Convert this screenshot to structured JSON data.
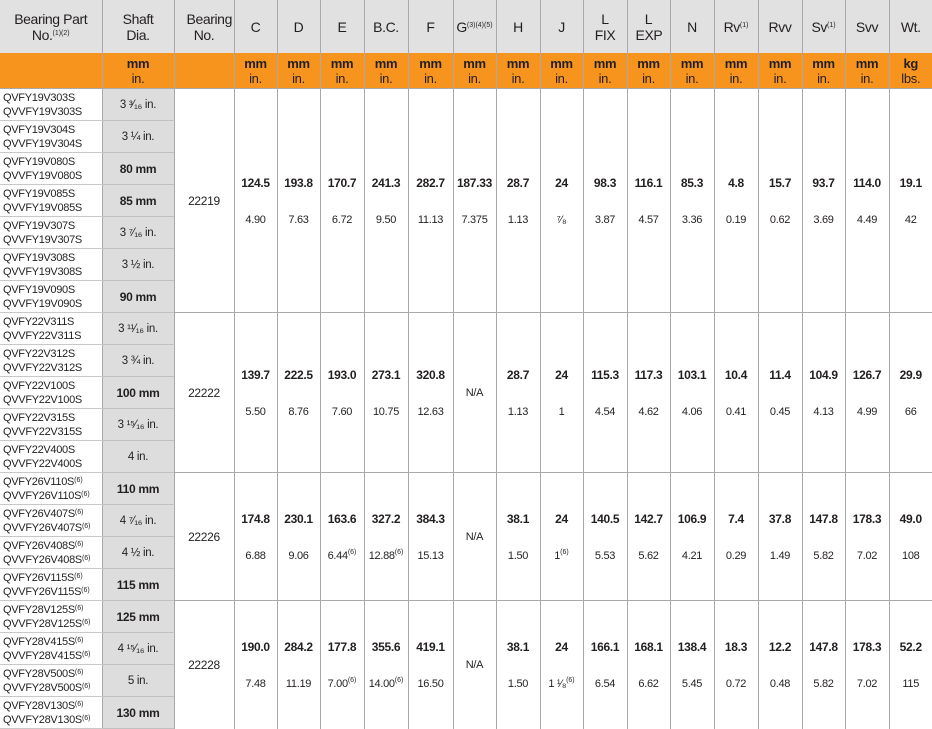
{
  "header": {
    "columns": [
      {
        "label": "Bearing Part No.",
        "sup": "(1)(2)"
      },
      {
        "label": "Shaft Dia."
      },
      {
        "label": "Bearing No."
      },
      {
        "label": "C"
      },
      {
        "label": "D"
      },
      {
        "label": "E"
      },
      {
        "label": "B.C."
      },
      {
        "label": "F"
      },
      {
        "label": "G",
        "sup": "(3)(4)(5)"
      },
      {
        "label": "H"
      },
      {
        "label": "J"
      },
      {
        "label": "L FIX"
      },
      {
        "label": "L EXP"
      },
      {
        "label": "N"
      },
      {
        "label": "Rv",
        "sup": "(1)"
      },
      {
        "label": "Rvv"
      },
      {
        "label": "Sv",
        "sup": "(1)"
      },
      {
        "label": "Svv"
      },
      {
        "label": "Wt."
      }
    ],
    "units": [
      {
        "top": "",
        "bottom": ""
      },
      {
        "top": "mm",
        "bottom": "in."
      },
      {
        "top": "",
        "bottom": ""
      },
      {
        "top": "mm",
        "bottom": "in."
      },
      {
        "top": "mm",
        "bottom": "in."
      },
      {
        "top": "mm",
        "bottom": "in."
      },
      {
        "top": "mm",
        "bottom": "in."
      },
      {
        "top": "mm",
        "bottom": "in."
      },
      {
        "top": "mm",
        "bottom": "in."
      },
      {
        "top": "mm",
        "bottom": "in."
      },
      {
        "top": "mm",
        "bottom": "in."
      },
      {
        "top": "mm",
        "bottom": "in."
      },
      {
        "top": "mm",
        "bottom": "in."
      },
      {
        "top": "mm",
        "bottom": "in."
      },
      {
        "top": "mm",
        "bottom": "in."
      },
      {
        "top": "mm",
        "bottom": "in."
      },
      {
        "top": "mm",
        "bottom": "in."
      },
      {
        "top": "mm",
        "bottom": "in."
      },
      {
        "top": "kg",
        "bottom": "lbs."
      }
    ]
  },
  "colors": {
    "header_bg": "#e1e1e1",
    "units_bg": "#f7941d",
    "shaft_bg": "#dddddd"
  },
  "groups": [
    {
      "bearing_no": "22219",
      "parts": [
        {
          "qvfy": "QVFY19V303S",
          "qvvfy": "QVVFY19V303S",
          "sup": "",
          "shaft": "3 ³⁄₁₆ in.",
          "bold": false
        },
        {
          "qvfy": "QVFY19V304S",
          "qvvfy": "QVVFY19V304S",
          "sup": "",
          "shaft": "3 ¼ in.",
          "bold": false
        },
        {
          "qvfy": "QVFY19V080S",
          "qvvfy": "QVVFY19V080S",
          "sup": "",
          "shaft": "80 mm",
          "bold": true
        },
        {
          "qvfy": "QVFY19V085S",
          "qvvfy": "QVVFY19V085S",
          "sup": "",
          "shaft": "85 mm",
          "bold": true
        },
        {
          "qvfy": "QVFY19V307S",
          "qvvfy": "QVVFY19V307S",
          "sup": "",
          "shaft": "3 ⁷⁄₁₆ in.",
          "bold": false
        },
        {
          "qvfy": "QVFY19V308S",
          "qvvfy": "QVVFY19V308S",
          "sup": "",
          "shaft": "3 ½ in.",
          "bold": false
        },
        {
          "qvfy": "QVFY19V090S",
          "qvvfy": "QVVFY19V090S",
          "sup": "",
          "shaft": "90 mm",
          "bold": true
        }
      ],
      "dims": [
        {
          "mm": "124.5",
          "in": "4.90"
        },
        {
          "mm": "193.8",
          "in": "7.63"
        },
        {
          "mm": "170.7",
          "in": "6.72"
        },
        {
          "mm": "241.3",
          "in": "9.50"
        },
        {
          "mm": "282.7",
          "in": "11.13"
        },
        {
          "mm": "187.33",
          "in": "7.375"
        },
        {
          "mm": "28.7",
          "in": "1.13"
        },
        {
          "mm": "24",
          "in": "⁷⁄₈"
        },
        {
          "mm": "98.3",
          "in": "3.87"
        },
        {
          "mm": "116.1",
          "in": "4.57"
        },
        {
          "mm": "85.3",
          "in": "3.36"
        },
        {
          "mm": "4.8",
          "in": "0.19"
        },
        {
          "mm": "15.7",
          "in": "0.62"
        },
        {
          "mm": "93.7",
          "in": "3.69"
        },
        {
          "mm": "114.0",
          "in": "4.49"
        },
        {
          "mm": "19.1",
          "in": "42"
        }
      ]
    },
    {
      "bearing_no": "22222",
      "parts": [
        {
          "qvfy": "QVFY22V311S",
          "qvvfy": "QVVFY22V311S",
          "sup": "",
          "shaft": "3 ¹¹⁄₁₆ in.",
          "bold": false
        },
        {
          "qvfy": "QVFY22V312S",
          "qvvfy": "QVVFY22V312S",
          "sup": "",
          "shaft": "3 ¾ in.",
          "bold": false
        },
        {
          "qvfy": "QVFY22V100S",
          "qvvfy": "QVVFY22V100S",
          "sup": "",
          "shaft": "100 mm",
          "bold": true
        },
        {
          "qvfy": "QVFY22V315S",
          "qvvfy": "QVVFY22V315S",
          "sup": "",
          "shaft": "3 ¹⁵⁄₁₆ in.",
          "bold": false
        },
        {
          "qvfy": "QVFY22V400S",
          "qvvfy": "QVVFY22V400S",
          "sup": "",
          "shaft": "4 in.",
          "bold": false
        }
      ],
      "dims": [
        {
          "mm": "139.7",
          "in": "5.50"
        },
        {
          "mm": "222.5",
          "in": "8.76"
        },
        {
          "mm": "193.0",
          "in": "7.60"
        },
        {
          "mm": "273.1",
          "in": "10.75"
        },
        {
          "mm": "320.8",
          "in": "12.63"
        },
        {
          "na": "N/A"
        },
        {
          "mm": "28.7",
          "in": "1.13"
        },
        {
          "mm": "24",
          "in": "1"
        },
        {
          "mm": "115.3",
          "in": "4.54"
        },
        {
          "mm": "117.3",
          "in": "4.62"
        },
        {
          "mm": "103.1",
          "in": "4.06"
        },
        {
          "mm": "10.4",
          "in": "0.41"
        },
        {
          "mm": "11.4",
          "in": "0.45"
        },
        {
          "mm": "104.9",
          "in": "4.13"
        },
        {
          "mm": "126.7",
          "in": "4.99"
        },
        {
          "mm": "29.9",
          "in": "66"
        }
      ]
    },
    {
      "bearing_no": "22226",
      "parts": [
        {
          "qvfy": "QVFY26V110S",
          "qvvfy": "QVVFY26V110S",
          "sup": "(6)",
          "shaft": "110 mm",
          "bold": true
        },
        {
          "qvfy": "QVFY26V407S",
          "qvvfy": "QVVFY26V407S",
          "sup": "(6)",
          "shaft": "4 ⁷⁄₁₆ in.",
          "bold": false
        },
        {
          "qvfy": "QVFY26V408S",
          "qvvfy": "QVVFY26V408S",
          "sup": "(6)",
          "shaft": "4 ½ in.",
          "bold": false
        },
        {
          "qvfy": "QVFY26V115S",
          "qvvfy": "QVVFY26V115S",
          "sup": "(6)",
          "shaft": "115 mm",
          "bold": true
        }
      ],
      "dims": [
        {
          "mm": "174.8",
          "in": "6.88"
        },
        {
          "mm": "230.1",
          "in": "9.06"
        },
        {
          "mm": "163.6",
          "in": "6.44",
          "sup": "(6)"
        },
        {
          "mm": "327.2",
          "in": "12.88",
          "sup": "(6)"
        },
        {
          "mm": "384.3",
          "in": "15.13"
        },
        {
          "na": "N/A"
        },
        {
          "mm": "38.1",
          "in": "1.50"
        },
        {
          "mm": "24",
          "in": "1",
          "sup": "(6)"
        },
        {
          "mm": "140.5",
          "in": "5.53"
        },
        {
          "mm": "142.7",
          "in": "5.62"
        },
        {
          "mm": "106.9",
          "in": "4.21"
        },
        {
          "mm": "7.4",
          "in": "0.29"
        },
        {
          "mm": "37.8",
          "in": "1.49"
        },
        {
          "mm": "147.8",
          "in": "5.82"
        },
        {
          "mm": "178.3",
          "in": "7.02"
        },
        {
          "mm": "49.0",
          "in": "108"
        }
      ]
    },
    {
      "bearing_no": "22228",
      "parts": [
        {
          "qvfy": "QVFY28V125S",
          "qvvfy": "QVVFY28V125S",
          "sup": "(6)",
          "shaft": "125 mm",
          "bold": true
        },
        {
          "qvfy": "QVFY28V415S",
          "qvvfy": "QVVFY28V415S",
          "sup": "(6)",
          "shaft": "4 ¹⁵⁄₁₆ in.",
          "bold": false
        },
        {
          "qvfy": "QVFY28V500S",
          "qvvfy": "QVVFY28V500S",
          "sup": "(6)",
          "shaft": "5 in.",
          "bold": false
        },
        {
          "qvfy": "QVFY28V130S",
          "qvvfy": "QVVFY28V130S",
          "sup": "(6)",
          "shaft": "130 mm",
          "bold": true
        }
      ],
      "dims": [
        {
          "mm": "190.0",
          "in": "7.48"
        },
        {
          "mm": "284.2",
          "in": "11.19"
        },
        {
          "mm": "177.8",
          "in": "7.00",
          "sup": "(6)"
        },
        {
          "mm": "355.6",
          "in": "14.00",
          "sup": "(6)"
        },
        {
          "mm": "419.1",
          "in": "16.50"
        },
        {
          "na": "N/A"
        },
        {
          "mm": "38.1",
          "in": "1.50"
        },
        {
          "mm": "24",
          "in": "1 ¹⁄₈",
          "sup": "(6)"
        },
        {
          "mm": "166.1",
          "in": "6.54"
        },
        {
          "mm": "168.1",
          "in": "6.62"
        },
        {
          "mm": "138.4",
          "in": "5.45"
        },
        {
          "mm": "18.3",
          "in": "0.72"
        },
        {
          "mm": "12.2",
          "in": "0.48"
        },
        {
          "mm": "147.8",
          "in": "5.82"
        },
        {
          "mm": "178.3",
          "in": "7.02"
        },
        {
          "mm": "52.2",
          "in": "115"
        }
      ]
    }
  ]
}
